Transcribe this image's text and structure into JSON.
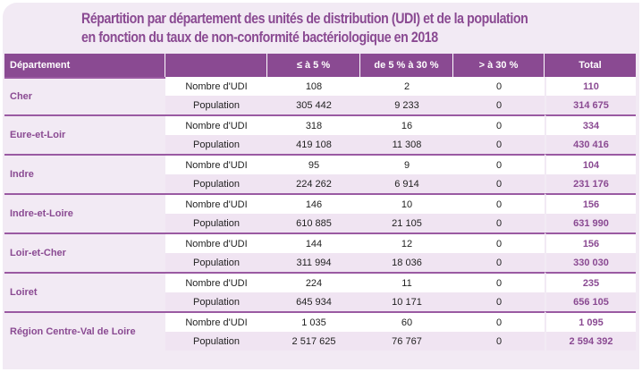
{
  "title_line1": "Répartition par département des unités de distribution (UDI) et de la population",
  "title_line2": "en fonction du taux de non-conformité bactériologique en 2018",
  "headers": {
    "departement": "Département",
    "blank": "",
    "le5": "≤ à 5 %",
    "5to30": "de 5 % à 30 %",
    "gt30": "> à 30 %",
    "total": "Total"
  },
  "rows": [
    {
      "dept": "Cher",
      "udi": {
        "label": "Nombre d'UDI",
        "le5": "108",
        "mid": "2",
        "gt30": "0",
        "total": "110"
      },
      "pop": {
        "label": "Population",
        "le5": "305 442",
        "mid": "9 233",
        "gt30": "0",
        "total": "314 675"
      }
    },
    {
      "dept": "Eure-et-Loir",
      "udi": {
        "label": "Nombre d'UDI",
        "le5": "318",
        "mid": "16",
        "gt30": "0",
        "total": "334"
      },
      "pop": {
        "label": "Population",
        "le5": "419 108",
        "mid": "11 308",
        "gt30": "0",
        "total": "430 416"
      }
    },
    {
      "dept": "Indre",
      "udi": {
        "label": "Nombre d'UDI",
        "le5": "95",
        "mid": "9",
        "gt30": "0",
        "total": "104"
      },
      "pop": {
        "label": "Population",
        "le5": "224 262",
        "mid": "6 914",
        "gt30": "0",
        "total": "231 176"
      }
    },
    {
      "dept": "Indre-et-Loire",
      "udi": {
        "label": "Nombre d'UDI",
        "le5": "146",
        "mid": "10",
        "gt30": "0",
        "total": "156"
      },
      "pop": {
        "label": "Population",
        "le5": "610 885",
        "mid": "21 105",
        "gt30": "0",
        "total": "631 990"
      }
    },
    {
      "dept": "Loir-et-Cher",
      "udi": {
        "label": "Nombre d'UDI",
        "le5": "144",
        "mid": "12",
        "gt30": "0",
        "total": "156"
      },
      "pop": {
        "label": "Population",
        "le5": "311 994",
        "mid": "18 036",
        "gt30": "0",
        "total": "330 030"
      }
    },
    {
      "dept": "Loiret",
      "udi": {
        "label": "Nombre d'UDI",
        "le5": "224",
        "mid": "11",
        "gt30": "0",
        "total": "235"
      },
      "pop": {
        "label": "Population",
        "le5": "645 934",
        "mid": "10 171",
        "gt30": "0",
        "total": "656 105"
      }
    },
    {
      "dept": "Région Centre-Val de Loire",
      "udi": {
        "label": "Nombre d'UDI",
        "le5": "1 035",
        "mid": "60",
        "gt30": "0",
        "total": "1 095"
      },
      "pop": {
        "label": "Population",
        "le5": "2 517 625",
        "mid": "76 767",
        "gt30": "0",
        "total": "2 594 392"
      }
    }
  ],
  "colors": {
    "accent": "#8a4a92",
    "panel": "#f2eaf4",
    "row_alt": "#f0e4f2"
  }
}
